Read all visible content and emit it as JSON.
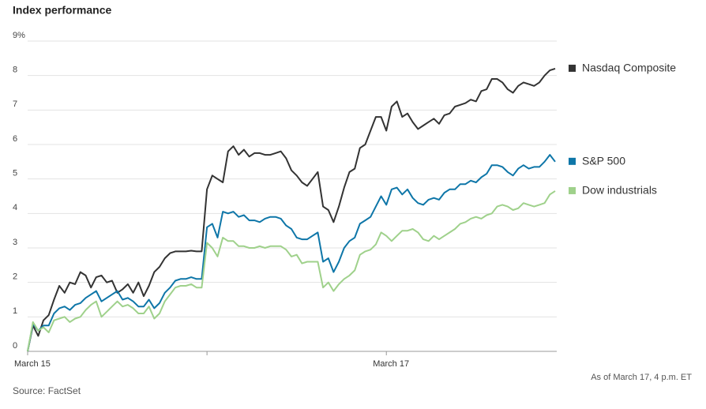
{
  "chart_data": {
    "type": "line",
    "title": "Index performance",
    "source": "Source: FactSet",
    "note": "As of March 17, 4 p.m. ET",
    "categories": [
      "March 15",
      null,
      null,
      null,
      null,
      null,
      null,
      null,
      null,
      null,
      null,
      null,
      null,
      null,
      null,
      null,
      null,
      null,
      null,
      null,
      null,
      null,
      null,
      null,
      null,
      null,
      null,
      null,
      null,
      null,
      null,
      null,
      null,
      null,
      null,
      null,
      null,
      null,
      null,
      null,
      null,
      null,
      null,
      null,
      null,
      null,
      null,
      null,
      null,
      null,
      null,
      null,
      null,
      null,
      null,
      null,
      null,
      null,
      null,
      null,
      null,
      null,
      null,
      null,
      null,
      null,
      null,
      null,
      "March 17",
      null,
      null,
      null,
      null,
      null,
      null,
      null,
      null,
      null,
      null,
      null,
      null,
      null,
      null,
      null,
      null,
      null,
      null,
      null,
      null,
      null,
      null,
      null,
      null,
      null,
      null,
      null,
      null,
      null,
      null,
      null,
      null
    ],
    "xticks": [
      0,
      34,
      68
    ],
    "ylim": [
      0,
      9
    ],
    "yticks": [
      0,
      1,
      2,
      3,
      4,
      5,
      6,
      7,
      8,
      {
        "value": 9,
        "label": "9%"
      }
    ],
    "grid": true,
    "legend": "right",
    "series": [
      {
        "name": "Nasdaq Composite",
        "color": "#333333",
        "values": [
          0,
          0.75,
          0.45,
          0.9,
          1.05,
          1.5,
          1.9,
          1.7,
          2.0,
          1.95,
          2.3,
          2.2,
          1.85,
          2.15,
          2.2,
          2.0,
          2.05,
          1.7,
          1.8,
          1.95,
          1.7,
          2.0,
          1.6,
          1.9,
          2.3,
          2.45,
          2.7,
          2.85,
          2.9,
          2.9,
          2.9,
          2.92,
          2.9,
          2.9,
          4.7,
          5.1,
          5.0,
          4.9,
          5.8,
          5.95,
          5.7,
          5.85,
          5.65,
          5.75,
          5.75,
          5.7,
          5.7,
          5.75,
          5.8,
          5.6,
          5.25,
          5.1,
          4.9,
          4.8,
          5.0,
          5.2,
          4.2,
          4.1,
          3.75,
          4.2,
          4.75,
          5.2,
          5.3,
          5.9,
          6.0,
          6.4,
          6.8,
          6.8,
          6.4,
          7.1,
          7.25,
          6.8,
          6.9,
          6.65,
          6.45,
          6.55,
          6.65,
          6.75,
          6.6,
          6.85,
          6.9,
          7.1,
          7.15,
          7.2,
          7.3,
          7.25,
          7.55,
          7.6,
          7.9,
          7.9,
          7.8,
          7.6,
          7.5,
          7.7,
          7.8,
          7.75,
          7.7,
          7.8,
          8.0,
          8.15,
          8.2
        ]
      },
      {
        "name": "S&P 500",
        "color": "#0e76a8",
        "values": [
          0,
          0.8,
          0.6,
          0.75,
          0.75,
          1.1,
          1.25,
          1.3,
          1.2,
          1.35,
          1.4,
          1.55,
          1.65,
          1.75,
          1.45,
          1.55,
          1.65,
          1.75,
          1.5,
          1.55,
          1.45,
          1.3,
          1.3,
          1.5,
          1.25,
          1.4,
          1.7,
          1.85,
          2.05,
          2.1,
          2.1,
          2.15,
          2.1,
          2.1,
          3.6,
          3.7,
          3.3,
          4.05,
          4.0,
          4.05,
          3.9,
          3.95,
          3.8,
          3.8,
          3.75,
          3.85,
          3.9,
          3.9,
          3.85,
          3.65,
          3.55,
          3.3,
          3.25,
          3.25,
          3.35,
          3.45,
          2.6,
          2.7,
          2.3,
          2.6,
          3.0,
          3.2,
          3.3,
          3.7,
          3.8,
          3.9,
          4.2,
          4.5,
          4.25,
          4.7,
          4.75,
          4.55,
          4.7,
          4.45,
          4.3,
          4.25,
          4.4,
          4.45,
          4.4,
          4.6,
          4.7,
          4.7,
          4.85,
          4.85,
          4.95,
          4.9,
          5.05,
          5.15,
          5.4,
          5.4,
          5.35,
          5.2,
          5.1,
          5.3,
          5.4,
          5.3,
          5.35,
          5.35,
          5.5,
          5.7,
          5.5
        ]
      },
      {
        "name": "Dow industrials",
        "color": "#9fd18b",
        "values": [
          0,
          0.85,
          0.6,
          0.7,
          0.55,
          0.9,
          0.95,
          1.0,
          0.85,
          0.95,
          1.0,
          1.2,
          1.35,
          1.45,
          1.0,
          1.15,
          1.3,
          1.45,
          1.3,
          1.35,
          1.25,
          1.1,
          1.1,
          1.3,
          0.95,
          1.1,
          1.45,
          1.65,
          1.85,
          1.9,
          1.9,
          1.95,
          1.85,
          1.85,
          3.15,
          3.0,
          2.75,
          3.3,
          3.2,
          3.2,
          3.05,
          3.05,
          3.0,
          3.0,
          3.05,
          3.0,
          3.05,
          3.05,
          3.05,
          2.95,
          2.75,
          2.8,
          2.55,
          2.6,
          2.6,
          2.6,
          1.85,
          2.0,
          1.75,
          1.95,
          2.1,
          2.2,
          2.35,
          2.8,
          2.9,
          2.95,
          3.1,
          3.45,
          3.35,
          3.2,
          3.35,
          3.5,
          3.5,
          3.55,
          3.45,
          3.25,
          3.2,
          3.35,
          3.25,
          3.35,
          3.45,
          3.55,
          3.7,
          3.75,
          3.85,
          3.9,
          3.85,
          3.95,
          4.0,
          4.2,
          4.25,
          4.2,
          4.1,
          4.15,
          4.3,
          4.25,
          4.2,
          4.25,
          4.3,
          4.55,
          4.65
        ]
      }
    ]
  }
}
